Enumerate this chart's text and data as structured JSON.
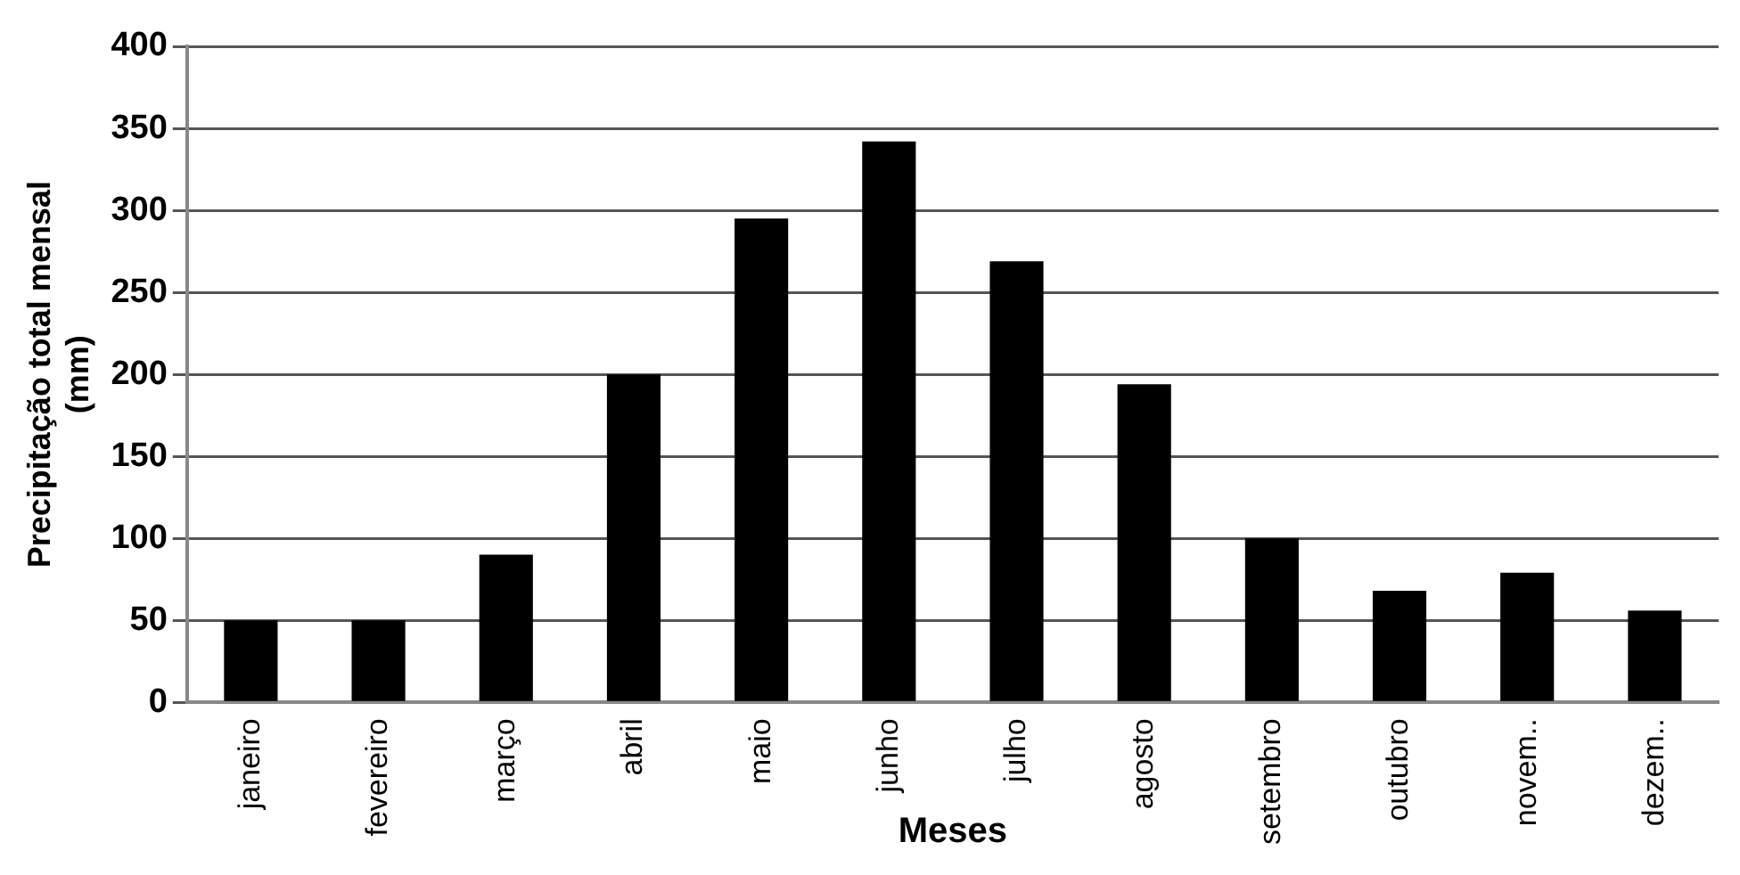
{
  "chart_data": {
    "type": "bar",
    "xlabel": "Meses",
    "ylabel": "Precipitação total mensal (mm)",
    "categories": [
      "janeiro",
      "fevereiro",
      "março",
      "abril",
      "maio",
      "junho",
      "julho",
      "agosto",
      "setembro",
      "outubro",
      "novem..",
      "dezem.."
    ],
    "values": [
      50,
      50,
      90,
      200,
      295,
      342,
      269,
      194,
      100,
      68,
      79,
      56
    ],
    "color": "#000000",
    "ylim": [
      0,
      400
    ],
    "yticks": [
      0,
      50,
      100,
      150,
      200,
      250,
      300,
      350,
      400
    ],
    "grid": "y",
    "legend": false
  }
}
